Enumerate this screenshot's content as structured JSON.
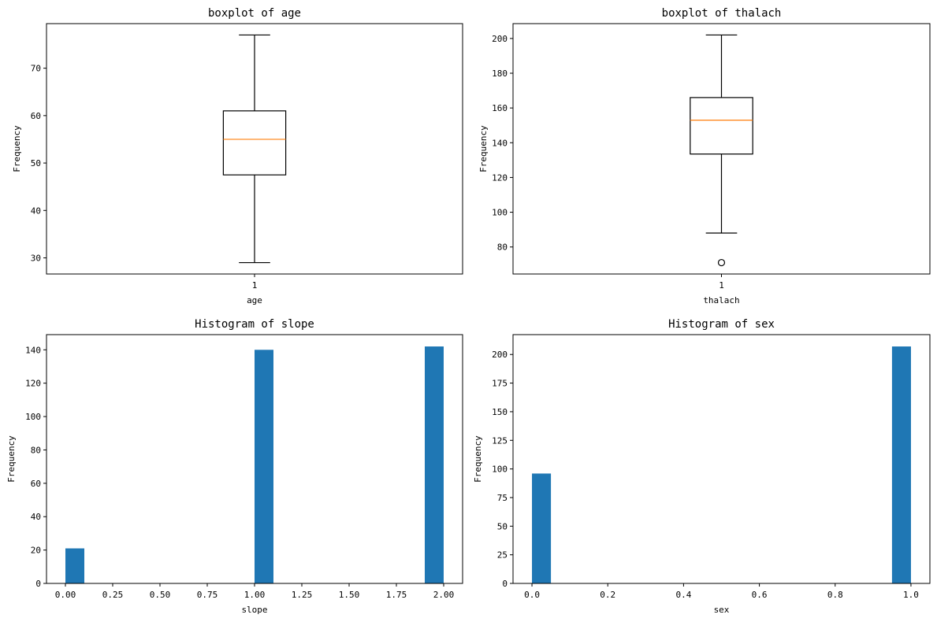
{
  "chart_data": [
    {
      "type": "boxplot",
      "title": "boxplot of age",
      "xlabel": "age",
      "ylabel": "Frequency",
      "xticks": [
        "1"
      ],
      "yticks": [
        30,
        40,
        50,
        60,
        70
      ],
      "ylim": [
        26.6,
        79.4
      ],
      "box": {
        "whisker_low": 29,
        "q1": 47.5,
        "median": 55,
        "q3": 61,
        "whisker_high": 77,
        "outliers": []
      },
      "box_color": "#000000",
      "median_color": "#ff7f0e"
    },
    {
      "type": "boxplot",
      "title": "boxplot of thalach",
      "xlabel": "thalach",
      "ylabel": "Frequency",
      "xticks": [
        "1"
      ],
      "yticks": [
        80,
        100,
        120,
        140,
        160,
        180,
        200
      ],
      "ylim": [
        64.45,
        208.55
      ],
      "box": {
        "whisker_low": 88,
        "q1": 133.5,
        "median": 153,
        "q3": 166,
        "whisker_high": 202,
        "outliers": [
          71
        ]
      },
      "box_color": "#000000",
      "median_color": "#ff7f0e"
    },
    {
      "type": "histogram",
      "title": "Histogram of slope",
      "xlabel": "slope",
      "ylabel": "Frequency",
      "bin_edges": [
        0.0,
        0.1,
        1.0,
        1.1,
        1.9,
        2.0
      ],
      "bars": [
        {
          "x0": 0.0,
          "x1": 0.1,
          "count": 21
        },
        {
          "x0": 1.0,
          "x1": 1.1,
          "count": 140
        },
        {
          "x0": 1.9,
          "x1": 2.0,
          "count": 142
        }
      ],
      "xlim": [
        -0.1,
        2.1
      ],
      "ylim": [
        0,
        149.1
      ],
      "xticks": [
        0.0,
        0.25,
        0.5,
        0.75,
        1.0,
        1.25,
        1.5,
        1.75,
        2.0
      ],
      "xtick_labels": [
        "0.00",
        "0.25",
        "0.50",
        "0.75",
        "1.00",
        "1.25",
        "1.50",
        "1.75",
        "2.00"
      ],
      "yticks": [
        0,
        20,
        40,
        60,
        80,
        100,
        120,
        140
      ],
      "bar_color": "#1f77b4"
    },
    {
      "type": "histogram",
      "title": "Histogram of sex",
      "xlabel": "sex",
      "ylabel": "Frequency",
      "bars": [
        {
          "x0": 0.0,
          "x1": 0.05,
          "count": 96
        },
        {
          "x0": 0.95,
          "x1": 1.0,
          "count": 207
        }
      ],
      "xlim": [
        -0.05,
        1.05
      ],
      "ylim": [
        0,
        217.35
      ],
      "xticks": [
        0.0,
        0.2,
        0.4,
        0.6,
        0.8,
        1.0
      ],
      "xtick_labels": [
        "0.0",
        "0.2",
        "0.4",
        "0.6",
        "0.8",
        "1.0"
      ],
      "yticks": [
        0,
        25,
        50,
        75,
        100,
        125,
        150,
        175,
        200
      ],
      "bar_color": "#1f77b4"
    }
  ]
}
